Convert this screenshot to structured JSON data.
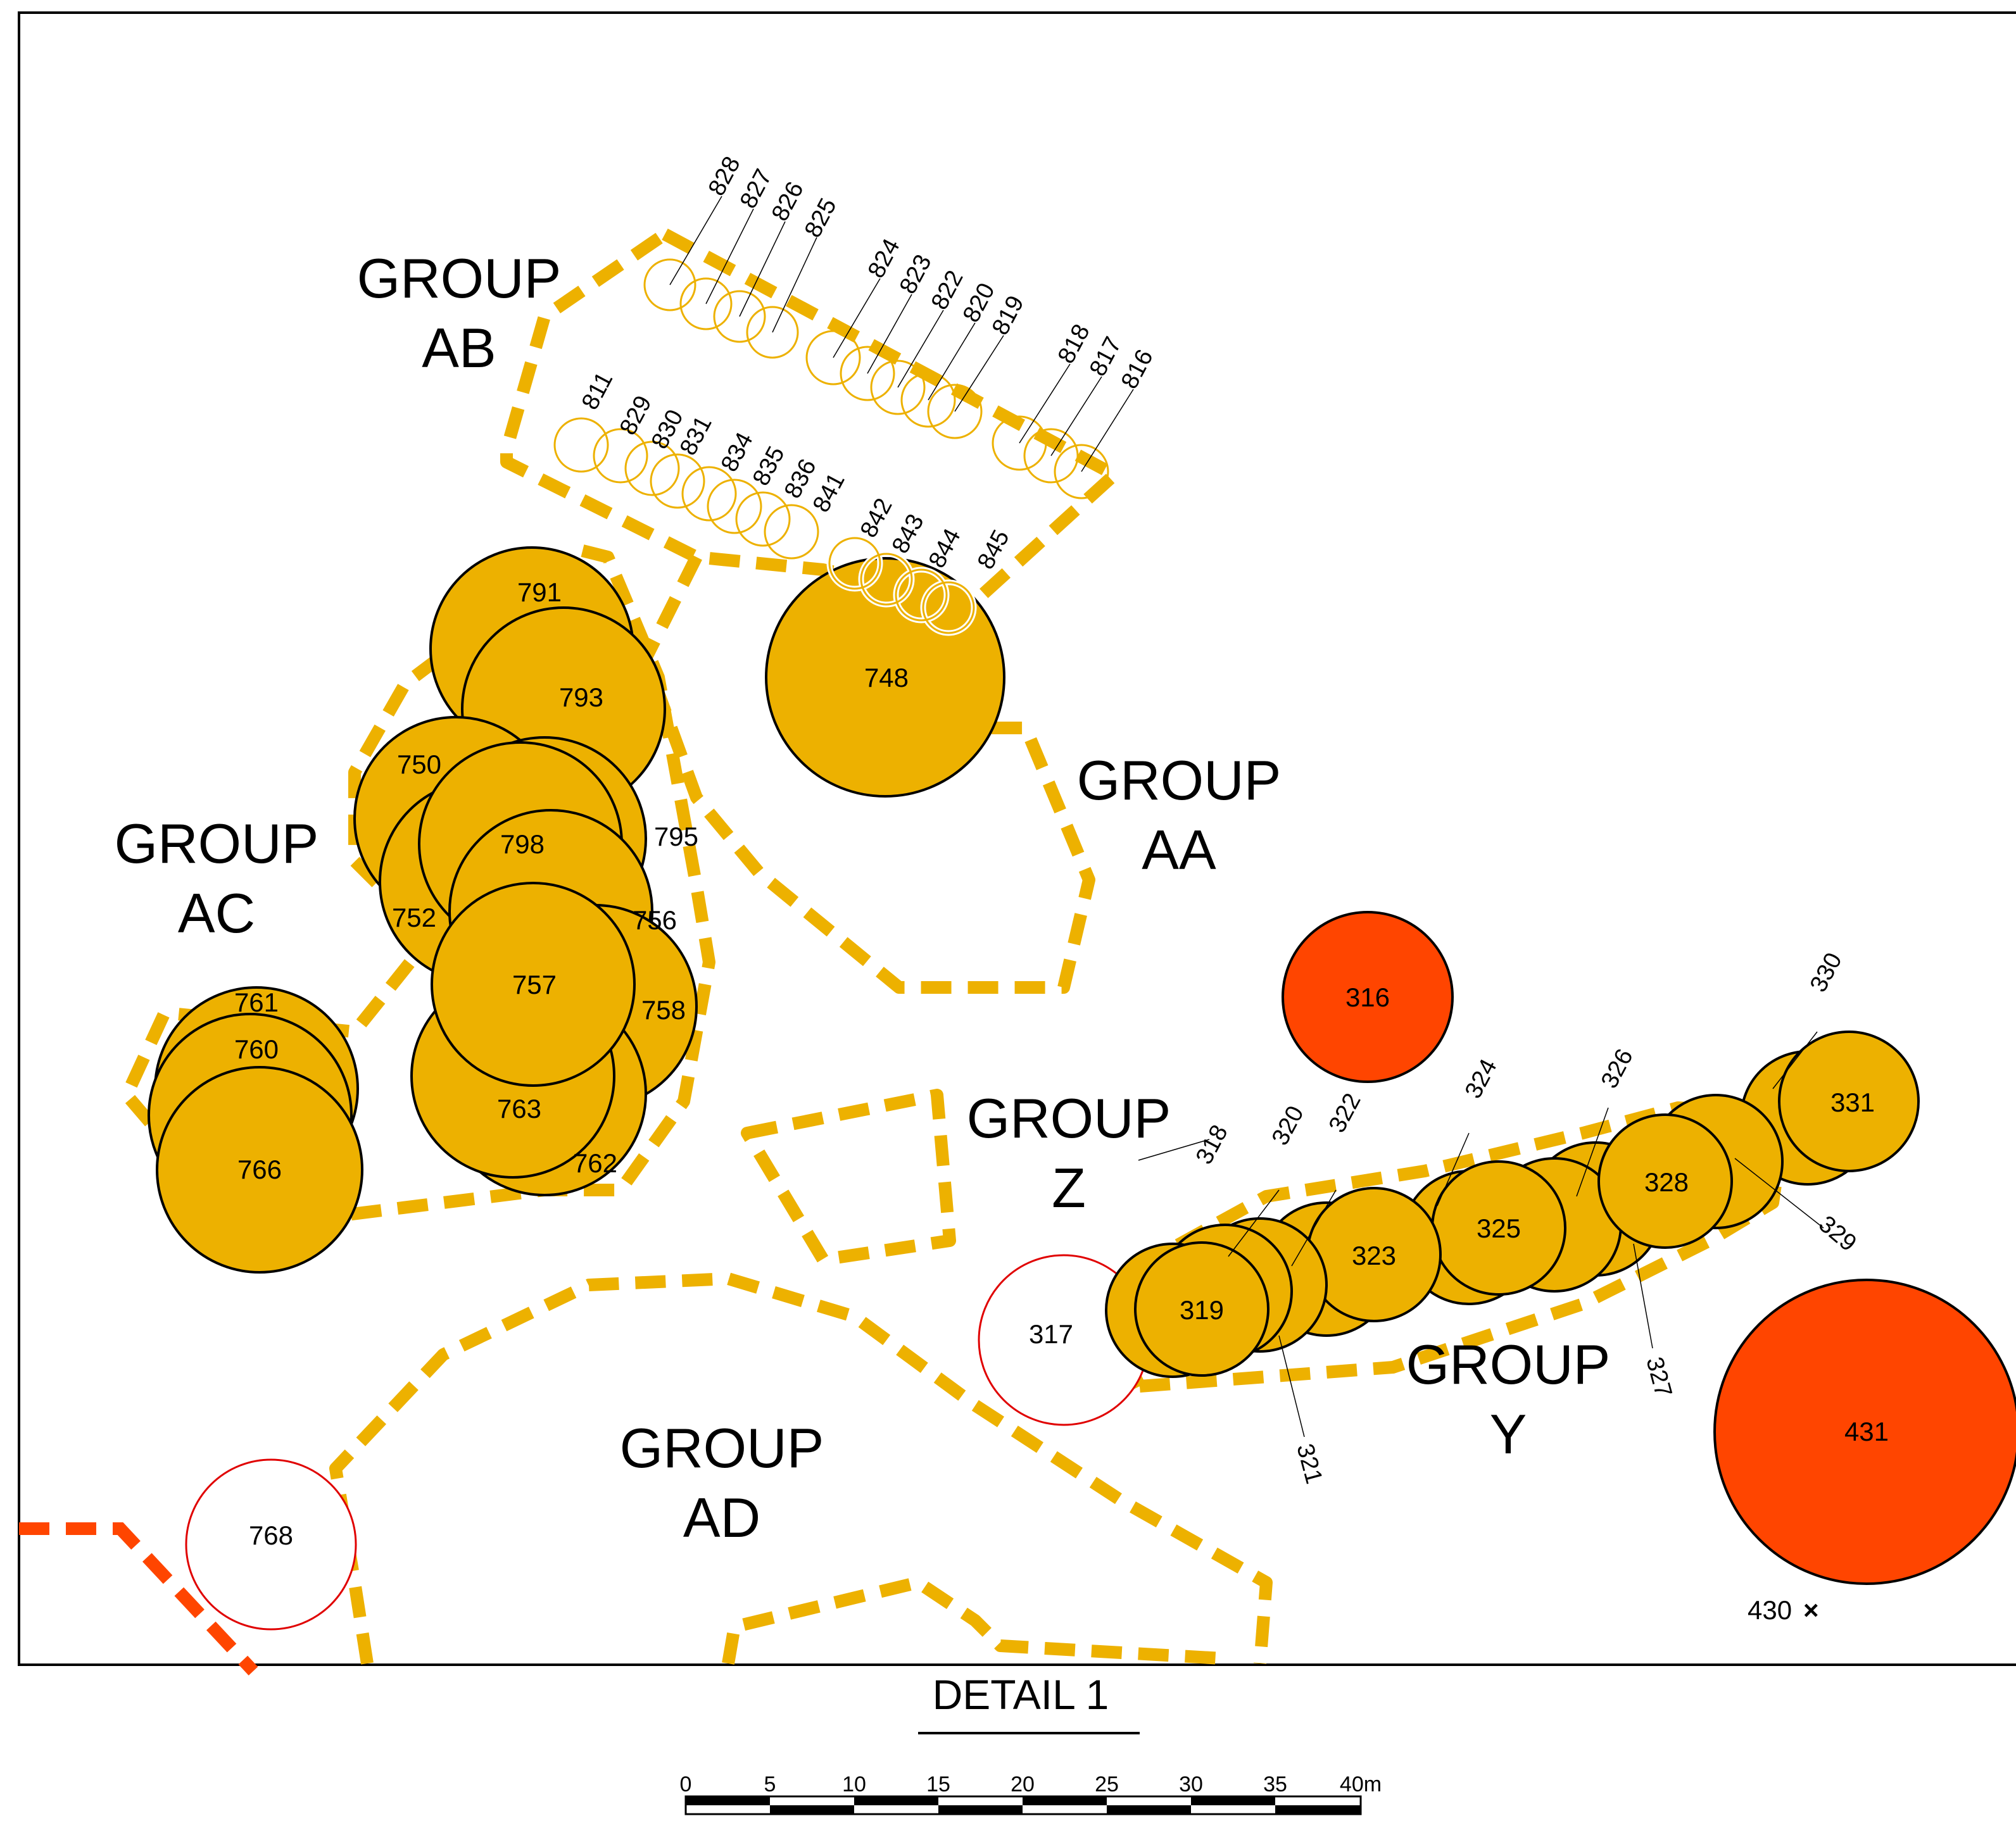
{
  "title": "DETAIL 1",
  "colors": {
    "retained": "#EDB100",
    "removed": "#FF4500",
    "proposed_removed_outline": "#E00000",
    "boundary_dash": "#EDB100",
    "tpz_dash_red": "#FF4500"
  },
  "groups": [
    {
      "id": "AB",
      "line1": "GROUP",
      "line2": "AB"
    },
    {
      "id": "AC",
      "line1": "GROUP",
      "line2": "AC"
    },
    {
      "id": "AA",
      "line1": "GROUP",
      "line2": "AA"
    },
    {
      "id": "Z",
      "line1": "GROUP",
      "line2": "Z"
    },
    {
      "id": "Y",
      "line1": "GROUP",
      "line2": "Y"
    },
    {
      "id": "AD",
      "line1": "GROUP",
      "line2": "AD"
    }
  ],
  "trees_large": [
    "761",
    "760",
    "766",
    "791",
    "793",
    "750",
    "795",
    "798",
    "752",
    "756",
    "757",
    "758",
    "763",
    "762",
    "748",
    "316",
    "317",
    "319",
    "323",
    "325",
    "328",
    "331",
    "431",
    "768"
  ],
  "trees_small": [
    "828",
    "827",
    "826",
    "825",
    "824",
    "823",
    "822",
    "820",
    "819",
    "818",
    "817",
    "816",
    "811",
    "829",
    "830",
    "831",
    "834",
    "835",
    "836",
    "841",
    "842",
    "843",
    "844",
    "845"
  ],
  "leader_labels": [
    "318",
    "320",
    "322",
    "324",
    "326",
    "330",
    "321",
    "327",
    "329"
  ],
  "marker": {
    "label": "430",
    "symbol": "×"
  },
  "scale_bar": {
    "ticks": [
      "0",
      "5",
      "10",
      "15",
      "20",
      "25",
      "30",
      "35",
      "40m"
    ]
  }
}
